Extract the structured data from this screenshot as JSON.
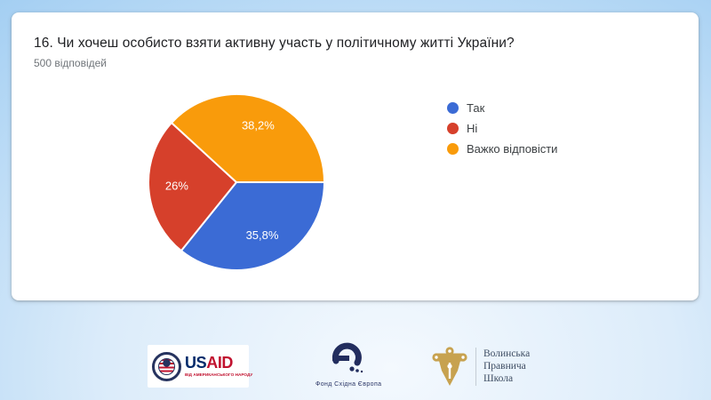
{
  "question_card": {
    "title": "16. Чи хочеш особисто взяти активну участь у політичному житті України?",
    "responses_count": "500 відповідей"
  },
  "chart_data": {
    "type": "pie",
    "title": "16. Чи хочеш особисто взяти активну участь у політичному житті України?",
    "subtitle": "500 відповідей",
    "total_responses": 500,
    "start_angle": "east",
    "direction": "clockwise",
    "legend_position": "right",
    "label_color": "#FFFFFF",
    "slices": [
      {
        "label": "Так",
        "value": 35.8,
        "display": "35,8%",
        "color": "#3B6BD5"
      },
      {
        "label": "Ні",
        "value": 26.0,
        "display": "26%",
        "color": "#D6402B"
      },
      {
        "label": "Важко відповісти",
        "value": 38.2,
        "display": "38,2%",
        "color": "#F99B0B"
      }
    ]
  },
  "footer_logos": {
    "usaid": {
      "brand_us": "US",
      "brand_aid": "AID",
      "tagline": "ВІД АМЕРИКАНСЬКОГО НАРОДУ",
      "navy": "#002A6A",
      "red": "#C1122F"
    },
    "eef": {
      "caption": "Фонд Східна Європа",
      "color": "#2A3565"
    },
    "vls": {
      "lines": [
        "Волинська",
        "Правнича",
        "Школа"
      ],
      "emblem_color": "#C7A24F",
      "text_color": "#3D4C61"
    }
  },
  "background": {
    "edge_color": "#9BCAF1",
    "center_color": "#F4F9FE",
    "card_color": "#FFFFFF"
  }
}
